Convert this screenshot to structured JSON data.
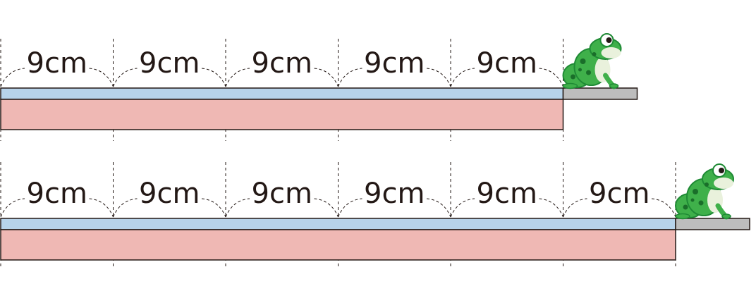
{
  "diagram": {
    "rows": [
      {
        "jumps": [
          "9cm",
          "9cm",
          "9cm",
          "9cm",
          "9cm"
        ]
      },
      {
        "jumps": [
          "9cm",
          "9cm",
          "9cm",
          "9cm",
          "9cm",
          "9cm"
        ]
      }
    ],
    "colors": {
      "blue_tape": "#b7d3ea",
      "pink_tape": "#efb8b4",
      "platform": "#bdbdbd",
      "outline": "#231815",
      "frog_green": "#3fb04a",
      "frog_dark": "#1f8a35",
      "frog_spots": "#1a6e2a",
      "frog_belly": "#e9f1dc"
    },
    "icons": [
      "frog-icon"
    ]
  }
}
